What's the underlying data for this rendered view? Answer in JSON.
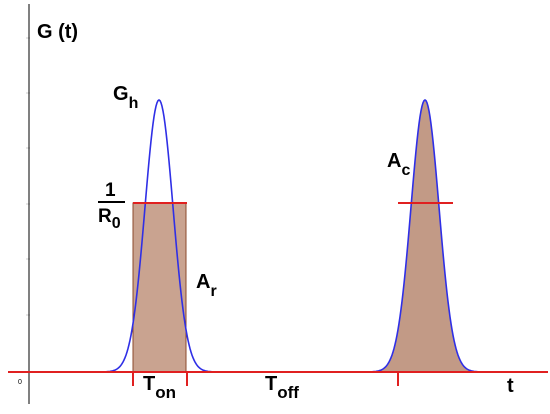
{
  "diagram": {
    "y_axis_label": "G (t)",
    "x_axis_label": "t",
    "origin_label": "0",
    "gaussian_label": {
      "main": "G",
      "sub": "h"
    },
    "fraction_label": {
      "numerator": "1",
      "denominator_main": "R",
      "denominator_sub": "0"
    },
    "rect_area_label": {
      "main": "A",
      "sub": "r"
    },
    "curve_area_label": {
      "main": "A",
      "sub": "c"
    },
    "t_on_label": {
      "main": "T",
      "sub": "on"
    },
    "t_off_label": {
      "main": "T",
      "sub": "off"
    },
    "colors": {
      "axis": "#000000",
      "curve": "#2f2fe6",
      "baseline": "#e02020",
      "rect_fill": "#c9a390",
      "area_fill": "#c29a86",
      "outline": "#8b4a2b"
    }
  }
}
